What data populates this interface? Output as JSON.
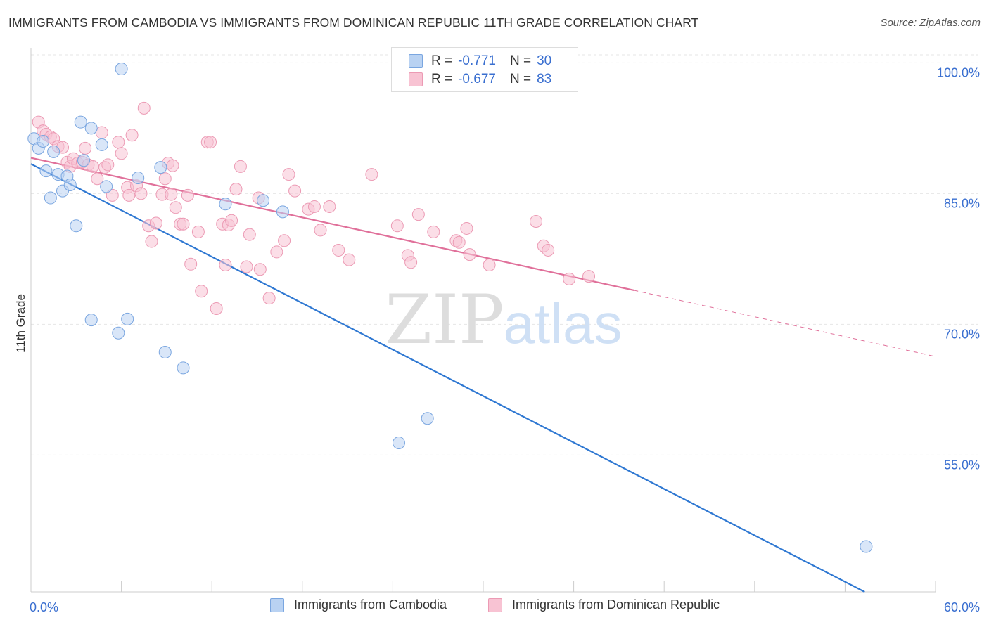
{
  "title": "IMMIGRANTS FROM CAMBODIA VS IMMIGRANTS FROM DOMINICAN REPUBLIC 11TH GRADE CORRELATION CHART",
  "source": "Source: ZipAtlas.com",
  "watermark": {
    "zip": "ZIP",
    "atlas": "atlas"
  },
  "colors": {
    "cambodia_fill": "#b9d2f2",
    "cambodia_stroke": "#7aa6e0",
    "cambodia_line": "#2f78d2",
    "dominican_fill": "#f8c3d3",
    "dominican_stroke": "#ec9ab4",
    "dominican_line": "#e0709a",
    "axis_label": "#3a6fd0",
    "grid": "#e6e6e6"
  },
  "legend_top": {
    "rows": [
      {
        "r_label": "R =",
        "r_value": "-0.771",
        "n_label": "N =",
        "n_value": "30"
      },
      {
        "r_label": "R =",
        "r_value": "-0.677",
        "n_label": "N =",
        "n_value": "83"
      }
    ]
  },
  "legend_bottom": {
    "cambodia": "Immigrants from Cambodia",
    "dominican": "Immigrants from Dominican Republic"
  },
  "chart_data": {
    "type": "scatter",
    "title": "IMMIGRANTS FROM CAMBODIA VS IMMIGRANTS FROM DOMINICAN REPUBLIC 11TH GRADE CORRELATION CHART",
    "xlabel": "",
    "ylabel": "11th Grade",
    "xlim": [
      0,
      60
    ],
    "ylim": [
      39.3,
      101.4
    ],
    "x_tick_labels": [
      "0.0%",
      "60.0%"
    ],
    "y_ticks": [
      55,
      70,
      85,
      100
    ],
    "y_tick_labels": [
      "55.0%",
      "70.0%",
      "85.0%",
      "100.0%"
    ],
    "grid": true,
    "legend_position": "top-center",
    "series": [
      {
        "name": "Immigrants from Cambodia",
        "r": -0.771,
        "n": 30,
        "trend": {
          "x": [
            0,
            55.3
          ],
          "y": [
            88.4,
            39.3
          ]
        },
        "points": [
          [
            0.2,
            91.3
          ],
          [
            0.5,
            90.2
          ],
          [
            0.8,
            91.0
          ],
          [
            1.0,
            87.6
          ],
          [
            1.3,
            84.5
          ],
          [
            1.5,
            89.8
          ],
          [
            1.8,
            87.2
          ],
          [
            2.1,
            85.3
          ],
          [
            2.4,
            87.0
          ],
          [
            2.6,
            86.0
          ],
          [
            3.0,
            81.3
          ],
          [
            3.3,
            93.2
          ],
          [
            3.5,
            88.8
          ],
          [
            4.0,
            92.5
          ],
          [
            4.0,
            70.5
          ],
          [
            4.7,
            90.6
          ],
          [
            5.0,
            85.8
          ],
          [
            5.8,
            69.0
          ],
          [
            6.0,
            99.3
          ],
          [
            6.4,
            70.6
          ],
          [
            7.1,
            86.8
          ],
          [
            8.6,
            88.0
          ],
          [
            8.9,
            66.8
          ],
          [
            10.1,
            65.0
          ],
          [
            12.9,
            83.8
          ],
          [
            15.4,
            84.2
          ],
          [
            16.7,
            82.9
          ],
          [
            24.4,
            56.4
          ],
          [
            26.3,
            59.2
          ],
          [
            55.4,
            44.5
          ]
        ]
      },
      {
        "name": "Immigrants from Dominican Republic",
        "r": -0.677,
        "n": 83,
        "trend": {
          "x": [
            0,
            40
          ],
          "y": [
            89.1,
            73.9
          ]
        },
        "trend_dashed": {
          "x": [
            40,
            60
          ],
          "y": [
            73.9,
            66.3
          ]
        },
        "points": [
          [
            0.5,
            93.2
          ],
          [
            0.8,
            92.2
          ],
          [
            1.0,
            91.8
          ],
          [
            1.3,
            91.5
          ],
          [
            1.5,
            91.3
          ],
          [
            1.8,
            90.4
          ],
          [
            2.1,
            90.3
          ],
          [
            2.4,
            88.6
          ],
          [
            2.6,
            88.1
          ],
          [
            2.8,
            89.0
          ],
          [
            3.1,
            88.5
          ],
          [
            3.4,
            88.6
          ],
          [
            3.6,
            90.2
          ],
          [
            3.8,
            88.3
          ],
          [
            4.1,
            88.1
          ],
          [
            4.4,
            86.7
          ],
          [
            4.7,
            92.0
          ],
          [
            4.9,
            88.0
          ],
          [
            5.1,
            88.3
          ],
          [
            5.4,
            84.8
          ],
          [
            5.8,
            90.9
          ],
          [
            6.0,
            89.6
          ],
          [
            6.4,
            85.7
          ],
          [
            6.5,
            84.8
          ],
          [
            6.7,
            91.7
          ],
          [
            7.0,
            85.9
          ],
          [
            7.3,
            85.0
          ],
          [
            7.5,
            94.8
          ],
          [
            7.8,
            81.3
          ],
          [
            8.0,
            79.5
          ],
          [
            8.3,
            81.6
          ],
          [
            8.7,
            84.9
          ],
          [
            8.9,
            86.7
          ],
          [
            9.1,
            88.5
          ],
          [
            9.3,
            84.9
          ],
          [
            9.4,
            88.2
          ],
          [
            9.6,
            83.4
          ],
          [
            9.9,
            81.5
          ],
          [
            10.1,
            81.5
          ],
          [
            10.4,
            84.8
          ],
          [
            10.6,
            76.9
          ],
          [
            11.1,
            80.6
          ],
          [
            11.3,
            73.8
          ],
          [
            11.7,
            90.9
          ],
          [
            11.9,
            90.9
          ],
          [
            12.3,
            71.8
          ],
          [
            12.7,
            81.5
          ],
          [
            12.9,
            76.8
          ],
          [
            13.1,
            81.4
          ],
          [
            13.3,
            81.9
          ],
          [
            13.6,
            85.5
          ],
          [
            13.9,
            88.1
          ],
          [
            14.3,
            76.6
          ],
          [
            14.5,
            80.3
          ],
          [
            15.1,
            84.5
          ],
          [
            15.2,
            76.3
          ],
          [
            15.8,
            73.0
          ],
          [
            16.3,
            78.3
          ],
          [
            16.8,
            79.6
          ],
          [
            17.1,
            87.2
          ],
          [
            17.5,
            85.3
          ],
          [
            18.4,
            83.2
          ],
          [
            18.8,
            83.5
          ],
          [
            19.2,
            80.8
          ],
          [
            19.8,
            83.5
          ],
          [
            20.4,
            78.5
          ],
          [
            21.1,
            77.4
          ],
          [
            22.6,
            87.2
          ],
          [
            24.3,
            81.3
          ],
          [
            25.0,
            77.9
          ],
          [
            25.2,
            77.1
          ],
          [
            25.7,
            82.6
          ],
          [
            26.7,
            80.6
          ],
          [
            28.2,
            79.6
          ],
          [
            28.4,
            79.4
          ],
          [
            28.9,
            81.0
          ],
          [
            29.1,
            78.0
          ],
          [
            30.4,
            76.8
          ],
          [
            33.5,
            81.8
          ],
          [
            34.0,
            79.0
          ],
          [
            34.3,
            78.5
          ],
          [
            35.7,
            75.2
          ],
          [
            37.0,
            75.5
          ]
        ]
      }
    ]
  }
}
